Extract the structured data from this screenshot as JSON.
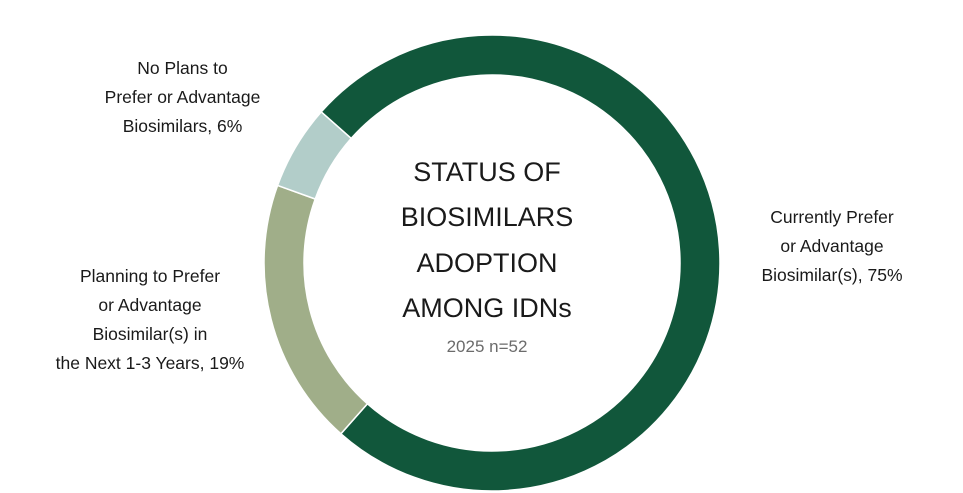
{
  "chart_data": {
    "type": "pie",
    "subtype": "donut",
    "title_lines": [
      "STATUS OF",
      "BIOSIMILARS",
      "ADOPTION",
      "AMONG IDNs"
    ],
    "subtitle": "2025 n=52",
    "slices": [
      {
        "name_lines": [
          "Currently Prefer",
          "or Advantage",
          "Biosimilar(s), 75%"
        ],
        "value": 75,
        "color": "#11573b"
      },
      {
        "name_lines": [
          "Planning to Prefer",
          "or Advantage",
          "Biosimilar(s) in",
          "the Next 1-3 Years, 19%"
        ],
        "value": 19,
        "color": "#a0ae89"
      },
      {
        "name_lines": [
          "No Plans to",
          "Prefer or Advantage",
          "Biosimilars, 6%"
        ],
        "value": 6,
        "color": "#b2cdc9"
      }
    ],
    "legend": "none"
  }
}
